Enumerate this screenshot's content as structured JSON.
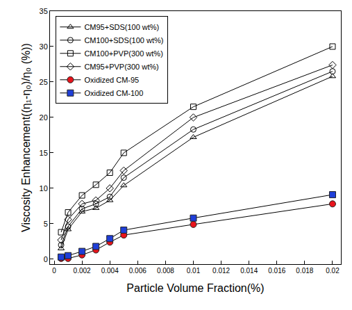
{
  "chart_data": {
    "type": "line",
    "x_label": "Particle Volume Fraction(%)",
    "y_label": "Viscosity Enhancement((η₁-η₀)/η₀ (%))",
    "x": [
      0.0005,
      0.001,
      0.002,
      0.003,
      0.004,
      0.005,
      0.01,
      0.02
    ],
    "series": [
      {
        "name": "CM95+SDS(100 wt%)",
        "color": "#000000",
        "marker": "triangle-up-open",
        "values": [
          1.5,
          4.2,
          6.7,
          7.2,
          8.3,
          10.4,
          17.2,
          25.8
        ]
      },
      {
        "name": "CM100+SDS(100 wt%)",
        "color": "#000000",
        "marker": "circle-open",
        "values": [
          2.0,
          4.6,
          7.1,
          7.8,
          8.8,
          11.5,
          18.3,
          26.5
        ]
      },
      {
        "name": "CM100+PVP(300 wt%)",
        "color": "#000000",
        "marker": "square-open",
        "values": [
          3.8,
          6.6,
          9.0,
          10.5,
          12.2,
          15.0,
          21.5,
          30.0
        ]
      },
      {
        "name": "CM95+PVP(300 wt%)",
        "color": "#000000",
        "marker": "diamond-open",
        "values": [
          2.7,
          5.6,
          7.8,
          8.3,
          10.0,
          12.5,
          20.0,
          27.4
        ]
      },
      {
        "name": "Oxidized CM-95",
        "color": "#e8141c",
        "marker": "circle",
        "values": [
          0.1,
          0.1,
          0.6,
          1.3,
          2.4,
          3.4,
          4.9,
          7.8
        ]
      },
      {
        "name": "Oxidized CM-100",
        "color": "#1f3fd8",
        "marker": "square",
        "values": [
          0.3,
          0.5,
          1.1,
          1.8,
          2.9,
          4.1,
          5.8,
          9.1
        ]
      }
    ],
    "xlim": [
      -0.0003,
      0.0206
    ],
    "xticks": [
      0,
      0.002,
      0.004,
      0.006,
      0.008,
      0.01,
      0.012,
      0.014,
      0.016,
      0.018,
      0.02
    ],
    "ylim": [
      -0.7,
      35
    ],
    "yticks": [
      0,
      5,
      10,
      15,
      20,
      25,
      30,
      35
    ],
    "grid": false,
    "legend": "top-left"
  }
}
